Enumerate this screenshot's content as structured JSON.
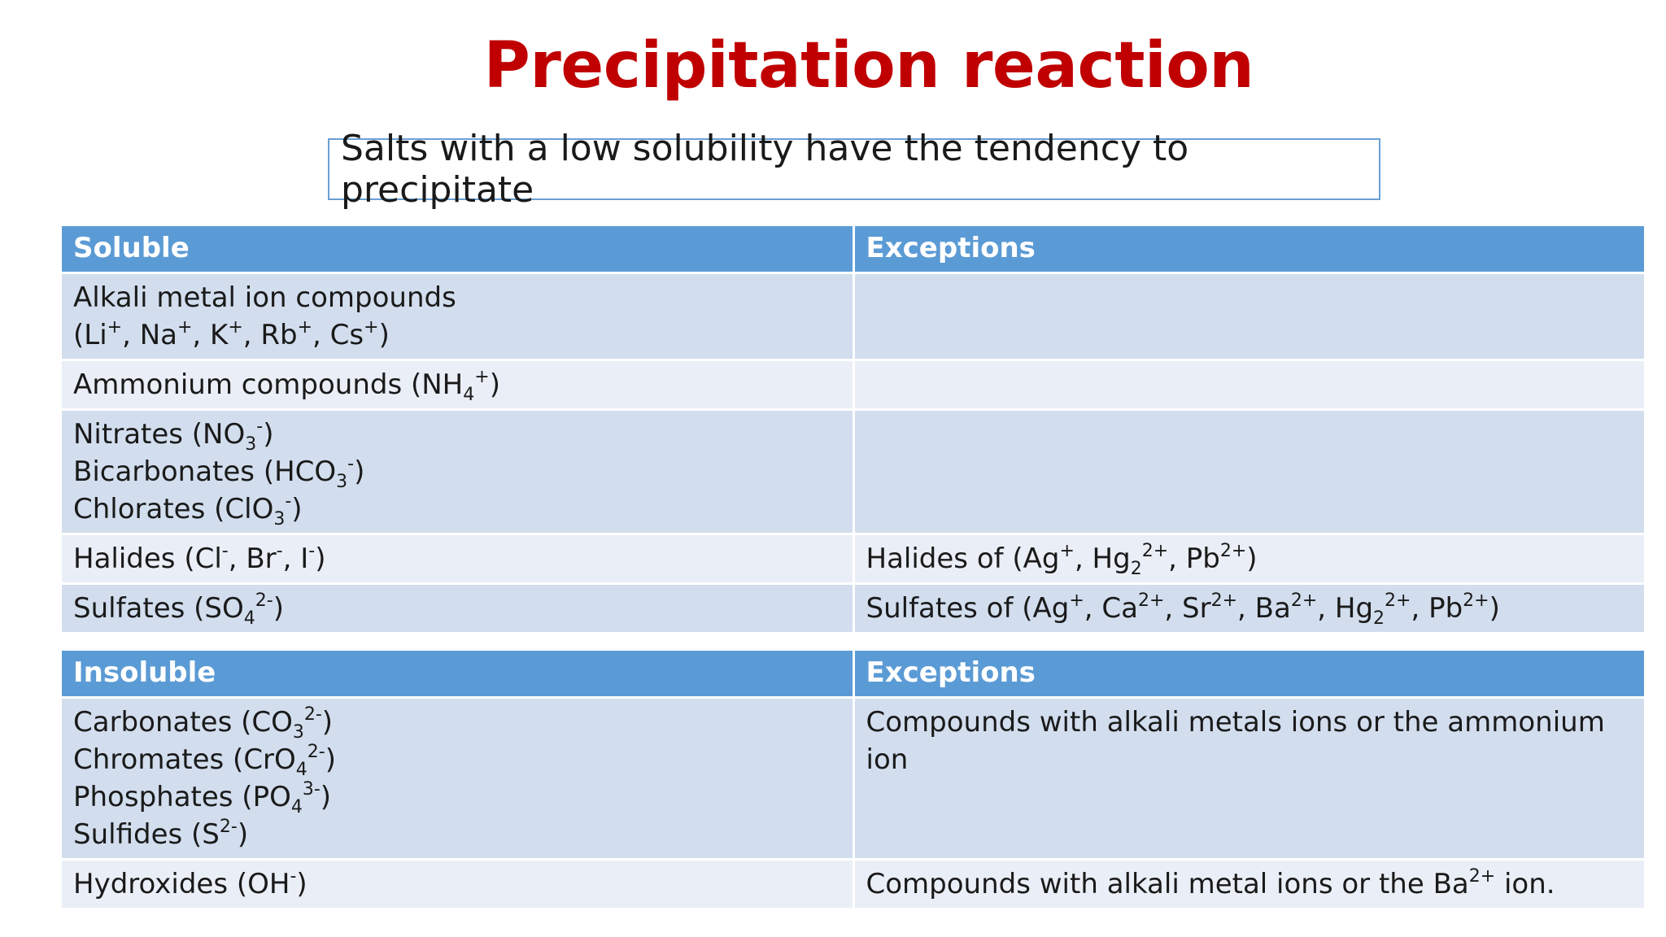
{
  "title": "Precipitation reaction",
  "subtitle": "Salts with a low solubility have the tendency to precipitate",
  "colors": {
    "title": "#c00000",
    "header": "#5b9bd5",
    "row_dark": "#d2deee",
    "row_light": "#eaeff7",
    "box_border": "#6a9fd4"
  },
  "soluble_table": {
    "headers": [
      "Soluble",
      "Exceptions"
    ],
    "rows": [
      {
        "left": [
          "Alkali metal ion compounds",
          "(Li<sup>+</sup>, Na<sup>+</sup>, K<sup>+</sup>, Rb<sup>+</sup>, Cs<sup>+</sup>)"
        ],
        "right": []
      },
      {
        "left": [
          "Ammonium compounds (NH<sub>4</sub><sup>+</sup>)"
        ],
        "right": []
      },
      {
        "left": [
          "Nitrates (NO<sub>3</sub><sup>-</sup>)",
          "Bicarbonates (HCO<sub>3</sub><sup>-</sup>)",
          "Chlorates (ClO<sub>3</sub><sup>-</sup>)"
        ],
        "right": []
      },
      {
        "left": [
          "Halides (Cl<sup>-</sup>, Br<sup>-</sup>, I<sup>-</sup>)"
        ],
        "right": [
          "Halides of (Ag<sup>+</sup>, Hg<sub>2</sub><sup>2+</sup>, Pb<sup>2+</sup>)"
        ]
      },
      {
        "left": [
          "Sulfates (SO<sub>4</sub><sup>2-</sup>)"
        ],
        "right": [
          "Sulfates of (Ag<sup>+</sup>, Ca<sup>2+</sup>, Sr<sup>2+</sup>, Ba<sup>2+</sup>, Hg<sub>2</sub><sup>2+</sup>, Pb<sup>2+</sup>)"
        ]
      }
    ]
  },
  "insoluble_table": {
    "headers": [
      "Insoluble",
      "Exceptions"
    ],
    "rows": [
      {
        "left": [
          "Carbonates (CO<sub>3</sub><sup>2-</sup>)",
          "Chromates (CrO<sub>4</sub><sup>2-</sup>)",
          "Phosphates (PO<sub>4</sub><sup>3-</sup>)",
          "Sulfides (S<sup>2-</sup>)"
        ],
        "right": [
          "Compounds with alkali metals ions or the ammonium ion"
        ]
      },
      {
        "left": [
          "Hydroxides (OH<sup>-</sup>)"
        ],
        "right": [
          "Compounds with alkali metal ions or the Ba<sup>2+</sup> ion."
        ]
      }
    ]
  }
}
